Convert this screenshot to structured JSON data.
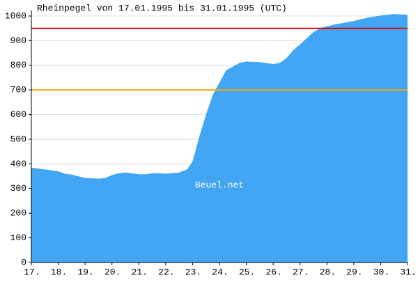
{
  "chart_data": {
    "type": "area",
    "title": "Rheinpegel von 17.01.1995 bis 31.01.1995 (UTC)",
    "watermark": "Beuel.net",
    "color": "#42a6f5",
    "x": [
      17,
      17.5,
      18,
      18.25,
      18.5,
      18.75,
      19,
      19.5,
      19.75,
      20,
      20.25,
      20.5,
      21,
      21.25,
      21.5,
      21.75,
      22,
      22.5,
      22.8,
      23,
      23.25,
      23.5,
      23.75,
      24,
      24.25,
      24.5,
      24.75,
      25,
      25.5,
      26,
      26.25,
      26.5,
      26.75,
      27,
      27.25,
      27.5,
      27.75,
      28,
      28.25,
      28.5,
      29,
      29.5,
      30,
      30.5,
      31
    ],
    "values": [
      385,
      378,
      370,
      360,
      357,
      350,
      343,
      340,
      343,
      355,
      362,
      365,
      358,
      358,
      362,
      362,
      360,
      365,
      378,
      410,
      510,
      600,
      680,
      730,
      780,
      795,
      810,
      815,
      813,
      805,
      810,
      830,
      862,
      885,
      910,
      935,
      950,
      958,
      965,
      970,
      980,
      993,
      1002,
      1008,
      1005
    ],
    "xlim": [
      17,
      31
    ],
    "xticks": [
      {
        "value": 17,
        "label": "17."
      },
      {
        "value": 18,
        "label": "18."
      },
      {
        "value": 19,
        "label": "19."
      },
      {
        "value": 20,
        "label": "20."
      },
      {
        "value": 21,
        "label": "21."
      },
      {
        "value": 22,
        "label": "22."
      },
      {
        "value": 23,
        "label": "23."
      },
      {
        "value": 24,
        "label": "24."
      },
      {
        "value": 25,
        "label": "25."
      },
      {
        "value": 26,
        "label": "26."
      },
      {
        "value": 27,
        "label": "27."
      },
      {
        "value": 28,
        "label": "28."
      },
      {
        "value": 29,
        "label": "29."
      },
      {
        "value": 30,
        "label": "30."
      },
      {
        "value": 31,
        "label": "31."
      }
    ],
    "ylim": [
      0,
      1000
    ],
    "yticks": [
      0,
      100,
      200,
      300,
      400,
      500,
      600,
      700,
      800,
      900,
      1000
    ],
    "grid": true,
    "reference_lines": [
      {
        "value": 950,
        "color": "#dd0000"
      },
      {
        "value": 700,
        "color": "#ffa500"
      }
    ]
  }
}
